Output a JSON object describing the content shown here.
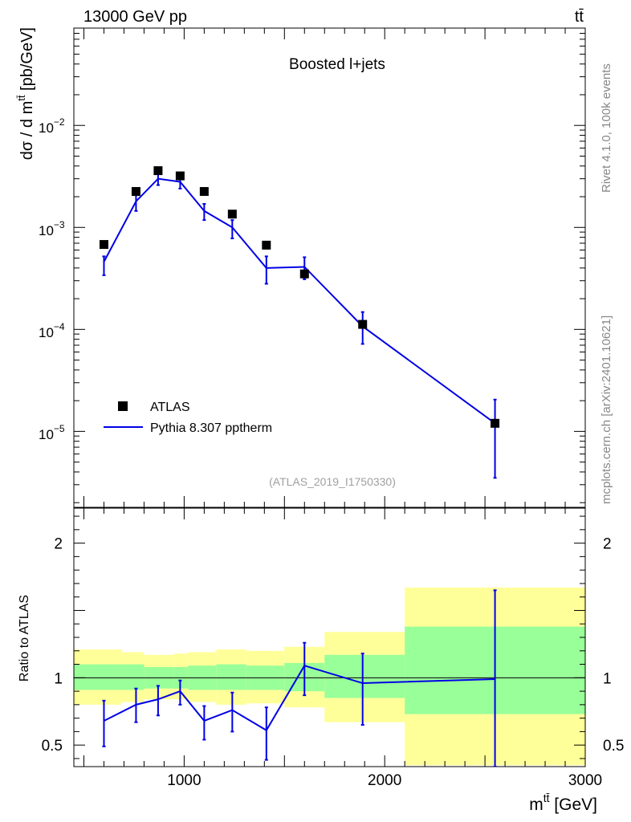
{
  "header": {
    "left": "13000 GeV pp",
    "right": "tt̄"
  },
  "side_labels": {
    "rivet": "Rivet 4.1.0,  100k events",
    "mcplots": "mcplots.cern.ch [arXiv:2401.10621]"
  },
  "colors": {
    "mc": "#0000e6",
    "data": "#000000",
    "band_inner": "#99ff99",
    "band_outer": "#ffff99"
  },
  "chart_data": [
    {
      "type": "line",
      "title": "Boosted l+jets",
      "analysis_id": "(ATLAS_2019_I1750330)",
      "ylabel": "dσ / d m^{tt̄} [pb/GeV]",
      "yscale": "log",
      "ylim": [
        1.8e-06,
        0.09
      ],
      "xlim": [
        450,
        3000
      ],
      "ytick_labels": [
        "10^{-2}",
        "10^{-3}",
        "10^{-4}",
        "10^{-5}"
      ],
      "legend": [
        "ATLAS",
        "Pythia 8.307 pptherm"
      ],
      "legend_position": "bottom-left",
      "x": [
        600,
        760,
        870,
        980,
        1100,
        1240,
        1410,
        1600,
        1890,
        2550
      ],
      "series": [
        {
          "name": "ATLAS",
          "values": [
            0.00068,
            0.00225,
            0.0036,
            0.0032,
            0.00225,
            0.00135,
            0.00067,
            0.00035,
            0.000112,
            1.2e-05
          ]
        },
        {
          "name": "Pythia 8.307 pptherm",
          "values": [
            0.00046,
            0.0018,
            0.003,
            0.0028,
            0.00145,
            0.001,
            0.0004,
            0.00041,
            0.000107,
            1.2e-05
          ],
          "err_low": [
            0.00034,
            0.00145,
            0.0026,
            0.0024,
            0.00118,
            0.00078,
            0.00028,
            0.00031,
            7.2e-05,
            3.5e-06
          ],
          "err_high": [
            0.00052,
            0.00215,
            0.0034,
            0.0032,
            0.0017,
            0.00118,
            0.00052,
            0.00051,
            0.000148,
            2.05e-05
          ]
        }
      ]
    },
    {
      "type": "line",
      "ylabel": "Ratio to ATLAS",
      "xlabel": "m^{tt̄} [GeV]",
      "ylim": [
        0.34,
        2.26
      ],
      "xlim": [
        450,
        3000
      ],
      "xtick_labels": [
        "1000",
        "2000",
        "3000"
      ],
      "ytick_labels": [
        "0.5",
        "1",
        "2"
      ],
      "reference_line": 1,
      "x": [
        600,
        760,
        870,
        980,
        1100,
        1240,
        1410,
        1600,
        1890,
        2550
      ],
      "series": [
        {
          "name": "Pythia 8.307 pptherm",
          "values": [
            0.68,
            0.8,
            0.84,
            0.9,
            0.68,
            0.76,
            0.61,
            1.09,
            0.96,
            0.99
          ],
          "err_low": [
            0.49,
            0.67,
            0.72,
            0.8,
            0.54,
            0.6,
            0.39,
            0.87,
            0.65,
            0.34
          ],
          "err_high": [
            0.83,
            0.92,
            0.94,
            0.98,
            0.79,
            0.89,
            0.78,
            1.26,
            1.18,
            1.65
          ]
        }
      ],
      "uncertainty_bands": [
        {
          "x_low": 450,
          "x_high": 690,
          "inner": [
            0.91,
            1.1
          ],
          "outer": [
            0.8,
            1.21
          ]
        },
        {
          "x_low": 690,
          "x_high": 800,
          "inner": [
            0.91,
            1.1
          ],
          "outer": [
            0.82,
            1.19
          ]
        },
        {
          "x_low": 800,
          "x_high": 950,
          "inner": [
            0.92,
            1.08
          ],
          "outer": [
            0.84,
            1.17
          ]
        },
        {
          "x_low": 950,
          "x_high": 1020,
          "inner": [
            0.92,
            1.08
          ],
          "outer": [
            0.84,
            1.18
          ]
        },
        {
          "x_low": 1020,
          "x_high": 1160,
          "inner": [
            0.91,
            1.09
          ],
          "outer": [
            0.82,
            1.19
          ]
        },
        {
          "x_low": 1160,
          "x_high": 1310,
          "inner": [
            0.91,
            1.1
          ],
          "outer": [
            0.8,
            1.21
          ]
        },
        {
          "x_low": 1310,
          "x_high": 1500,
          "inner": [
            0.91,
            1.09
          ],
          "outer": [
            0.81,
            1.2
          ]
        },
        {
          "x_low": 1500,
          "x_high": 1700,
          "inner": [
            0.9,
            1.11
          ],
          "outer": [
            0.78,
            1.23
          ]
        },
        {
          "x_low": 1700,
          "x_high": 2100,
          "inner": [
            0.85,
            1.17
          ],
          "outer": [
            0.67,
            1.34
          ]
        },
        {
          "x_low": 2100,
          "x_high": 3000,
          "inner": [
            0.73,
            1.38
          ],
          "outer": [
            0.35,
            1.67
          ]
        }
      ]
    }
  ]
}
